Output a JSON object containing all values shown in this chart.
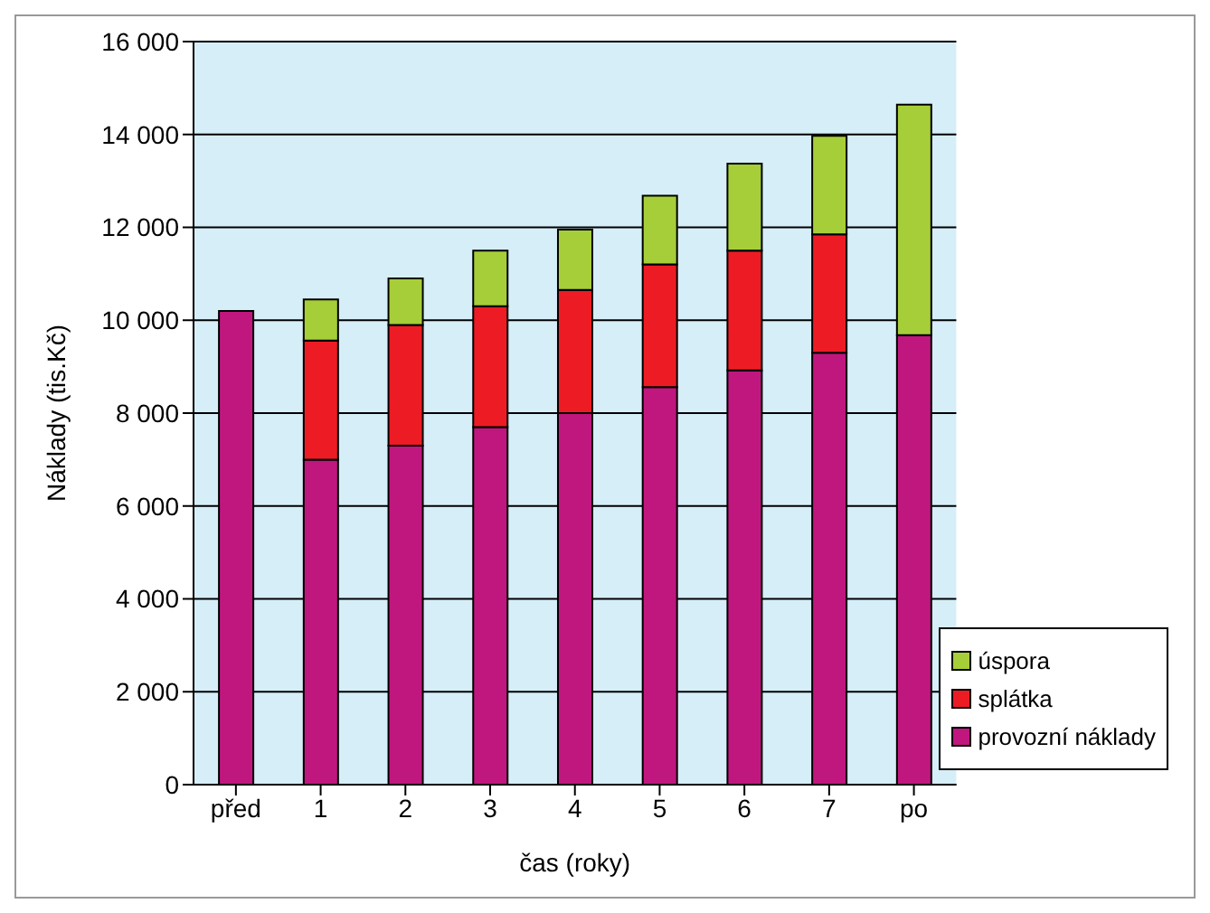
{
  "chart_data": {
    "type": "bar",
    "stacked": true,
    "xlabel": "čas (roky)",
    "ylabel": "Náklady (tis.Kč)",
    "categories": [
      "před",
      "1",
      "2",
      "3",
      "4",
      "5",
      "6",
      "7",
      "po"
    ],
    "series": [
      {
        "name": "provozní náklady",
        "color": "#c0177f",
        "values": [
          10200,
          7000,
          7300,
          7700,
          8000,
          8560,
          8920,
          9300,
          9680
        ]
      },
      {
        "name": "splátka",
        "color": "#ed1c24",
        "values": [
          null,
          2560,
          2600,
          2600,
          2650,
          2640,
          2580,
          2550,
          null
        ]
      },
      {
        "name": "úspora",
        "color": "#a6ce39",
        "values": [
          null,
          890,
          1000,
          1200,
          1300,
          1480,
          1870,
          2120,
          4960
        ]
      }
    ],
    "ylim": [
      0,
      16000
    ],
    "yticks": [
      0,
      {
        "value": 2000,
        "label": "2 000"
      },
      {
        "value": 4000,
        "label": "4 000"
      },
      {
        "value": 6000,
        "label": "6 000"
      },
      {
        "value": 8000,
        "label": "8 000"
      },
      {
        "value": 10000,
        "label": "10 000"
      },
      {
        "value": 12000,
        "label": "12 000"
      },
      {
        "value": 14000,
        "label": "14 000"
      },
      {
        "value": 16000,
        "label": "16 000"
      }
    ],
    "grid": "y",
    "legend": "bottom right"
  }
}
